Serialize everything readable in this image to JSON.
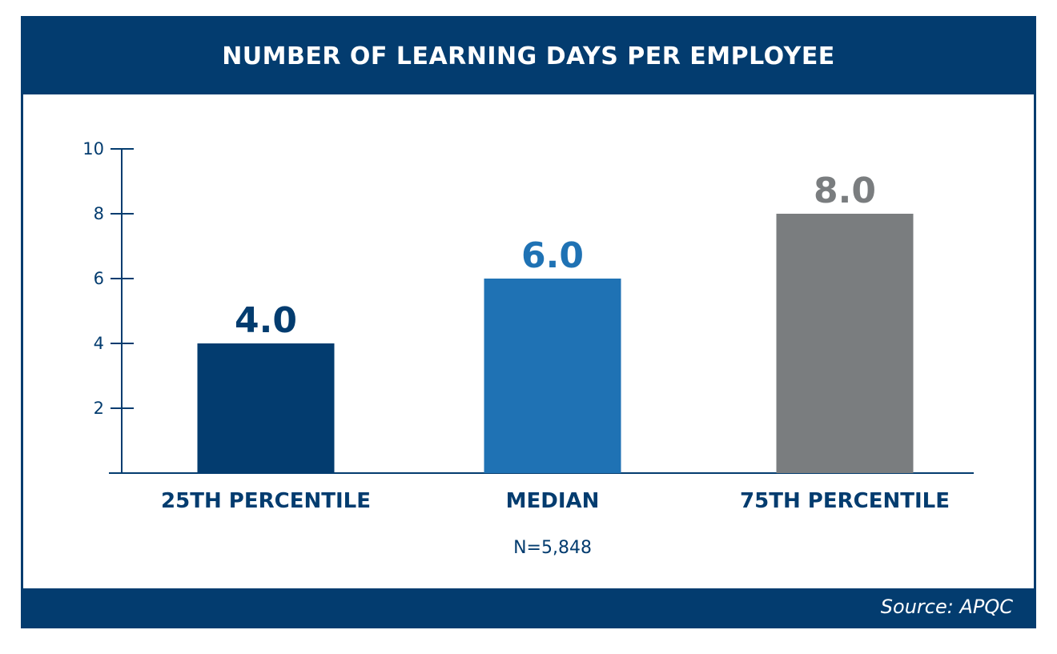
{
  "chart_data": {
    "type": "bar",
    "title": "NUMBER OF LEARNING DAYS PER EMPLOYEE",
    "categories": [
      "25TH PERCENTILE",
      "MEDIAN",
      "75TH PERCENTILE"
    ],
    "values": [
      4.0,
      6.0,
      8.0
    ],
    "data_labels": [
      "4.0",
      "6.0",
      "8.0"
    ],
    "bar_colors": [
      "#033c6f",
      "#1f72b4",
      "#7a7d7f"
    ],
    "y_ticks": [
      "2",
      "4",
      "6",
      "8",
      "10"
    ],
    "y_tick_values": [
      2,
      4,
      6,
      8,
      10
    ],
    "ylim": [
      0,
      10
    ],
    "xlabel": "",
    "ylabel": "",
    "grid": false,
    "sample_note": "N=5,848",
    "source": "Source: APQC"
  },
  "colors": {
    "navy": "#033c6f",
    "blue": "#1f72b4",
    "gray": "#7a7d7f"
  }
}
